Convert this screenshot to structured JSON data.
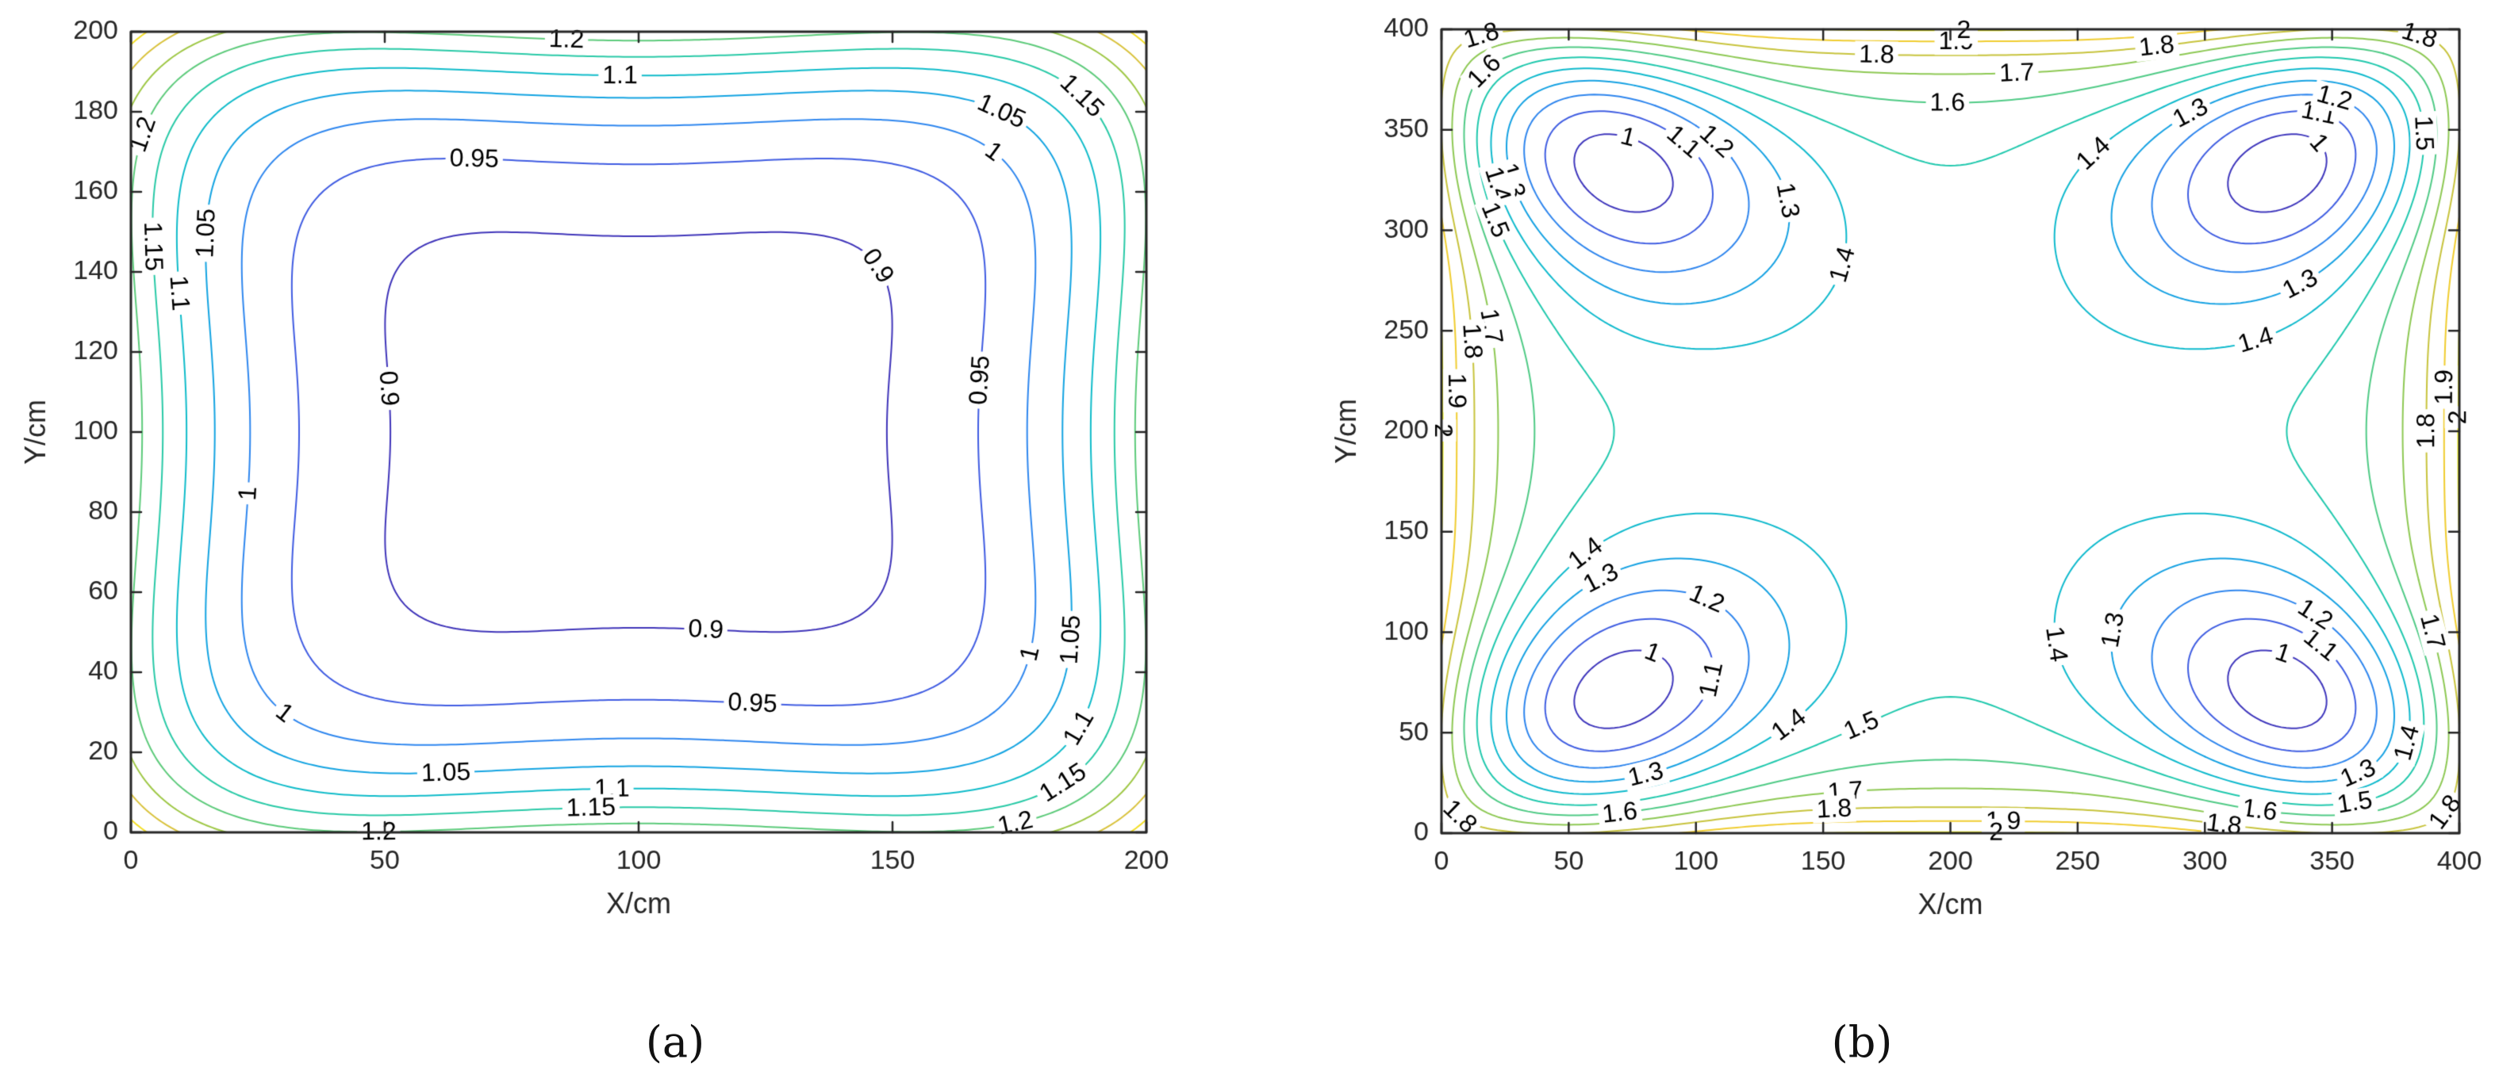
{
  "figure": {
    "background": "#ffffff",
    "captions": [
      "(a)",
      "(b)"
    ]
  },
  "chart_data": [
    {
      "type": "contour",
      "panel": "a",
      "title": "",
      "xlabel": "X/cm",
      "ylabel": "Y/cm",
      "xlim": [
        0,
        200
      ],
      "ylim": [
        0,
        200
      ],
      "xticks": [
        0,
        50,
        100,
        150,
        200
      ],
      "yticks": [
        0,
        20,
        40,
        60,
        80,
        100,
        120,
        140,
        160,
        180,
        200
      ],
      "grid": false,
      "legend": "none",
      "levels": [
        0.9,
        0.95,
        1,
        1.05,
        1.1,
        1.15,
        1.2,
        1.25,
        1.3,
        1.35
      ],
      "labeled_levels": [
        0.9,
        0.95,
        1,
        1.05,
        1.1,
        1.15,
        1.2
      ],
      "contour_label_texts": [
        "0.9",
        "0.95",
        "1",
        "1.05",
        "1.1",
        "1.15",
        "1.2"
      ],
      "color_range": [
        0.88,
        1.38
      ],
      "colormap_name": "parula",
      "colormap": [
        "#3e26a8",
        "#4356e0",
        "#2d8bf0",
        "#0aaedd",
        "#15c9b8",
        "#53cb83",
        "#a6c841",
        "#edbf39",
        "#f9fb15"
      ],
      "axis_color": "#262626",
      "label_color": "#000000",
      "field_model": {
        "type": "quartic_star",
        "description": "Four-fold symmetric field: minimum ~0.88 at plot center (inside 0.9 star contour), ~1.23 at edge midpoints, maximum ~1.38 at the four corners. f = c0 + k4*(u^4+v^4) + kxy*u^2*v^2 with u=(x-cx)/sx, v=(y-cy)/sy.",
        "c0": 0.88,
        "k4": 0.35,
        "kxy": -0.2,
        "cx": 100,
        "cy": 100,
        "sx": 100,
        "sy": 100
      }
    },
    {
      "type": "contour",
      "panel": "b",
      "title": "",
      "xlabel": "X/cm",
      "ylabel": "Y/cm",
      "xlim": [
        0,
        400
      ],
      "ylim": [
        0,
        400
      ],
      "xticks": [
        0,
        50,
        100,
        150,
        200,
        250,
        300,
        350,
        400
      ],
      "yticks": [
        0,
        50,
        100,
        150,
        200,
        250,
        300,
        350,
        400
      ],
      "grid": false,
      "legend": "none",
      "levels": [
        1,
        1.1,
        1.2,
        1.3,
        1.4,
        1.5,
        1.6,
        1.7,
        1.8,
        1.9,
        2
      ],
      "labeled_levels": [
        1,
        1.1,
        1.2,
        1.3,
        1.4,
        1.5,
        1.6,
        1.7,
        1.8,
        1.9,
        2
      ],
      "contour_label_texts": [
        "1",
        "1.1",
        "1.2",
        "1.3",
        "1.4",
        "1.5",
        "1.6",
        "1.7",
        "1.8",
        "1.9",
        "2"
      ],
      "color_range": [
        0.95,
        2.0
      ],
      "colormap_name": "parula",
      "colormap": [
        "#3e26a8",
        "#4356e0",
        "#2d8bf0",
        "#0aaedd",
        "#15c9b8",
        "#53cb83",
        "#a6c841",
        "#edbf39",
        "#f9fb15"
      ],
      "axis_color": "#262626",
      "label_color": "#000000",
      "field_model": {
        "type": "four_vortex",
        "description": "Four elliptical minima (value ~0.95, innermost labeled contour 1) near (60,340), (340,340), (60,60), (340,60); field rises to ~2 at the edge midpoints, ~1.9 arcs at corners, saddle ~1.45 at plot center surrounded by 1.4 contours.",
        "size": 400,
        "base": 1.46,
        "edge_amp": 0.55,
        "edge_scale": 27,
        "quad_dip": 0.1,
        "quad_period": 200,
        "well_amp": 0.56,
        "well_scale2": 3500,
        "well_elong": 1.35,
        "well_squeeze": 0.8,
        "well_centers": [
          [
            60,
            340
          ],
          [
            340,
            340
          ],
          [
            60,
            60
          ],
          [
            340,
            60
          ]
        ]
      }
    }
  ]
}
